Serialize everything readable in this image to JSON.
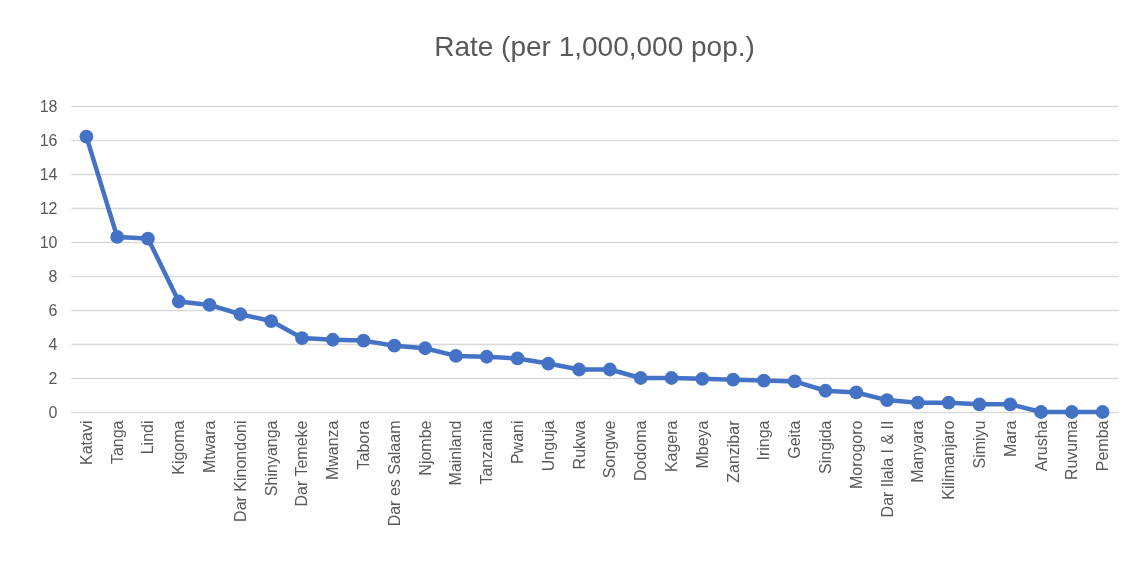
{
  "chart_data": {
    "type": "line",
    "title": "Rate (per 1,000,000 pop.)",
    "categories": [
      "Katavi",
      "Tanga",
      "Lindi",
      "Kigoma",
      "Mtwara",
      "Dar Kinondoni",
      "Shinyanga",
      "Dar Temeke",
      "Mwanza",
      "Tabora",
      "Dar es Salaam",
      "Njombe",
      "Mainland",
      "Tanzania",
      "Pwani",
      "Unguja",
      "Rukwa",
      "Songwe",
      "Dodoma",
      "Kagera",
      "Mbeya",
      "Zanzibar",
      "Iringa",
      "Geita",
      "Singida",
      "Morogoro",
      "Dar Ilala I & II",
      "Manyara",
      "Kilimanjaro",
      "Simiyu",
      "Mara",
      "Arusha",
      "Ruvuma",
      "Pemba"
    ],
    "series": [
      {
        "color": "#4472c4",
        "values": [
          16.2,
          10.3,
          10.2,
          6.5,
          6.3,
          5.75,
          5.35,
          4.35,
          4.25,
          4.2,
          3.9,
          3.75,
          3.3,
          3.25,
          3.15,
          2.85,
          2.5,
          2.5,
          2.0,
          2.0,
          1.95,
          1.9,
          1.85,
          1.8,
          1.25,
          1.15,
          0.7,
          0.55,
          0.55,
          0.45,
          0.45,
          0,
          0,
          0
        ]
      }
    ],
    "ylim": [
      0,
      18
    ],
    "yticks": [
      0,
      2,
      4,
      6,
      8,
      10,
      12,
      14,
      16,
      18
    ],
    "grid": "y",
    "marker": "circle",
    "line_style": "solid",
    "legend": false
  }
}
